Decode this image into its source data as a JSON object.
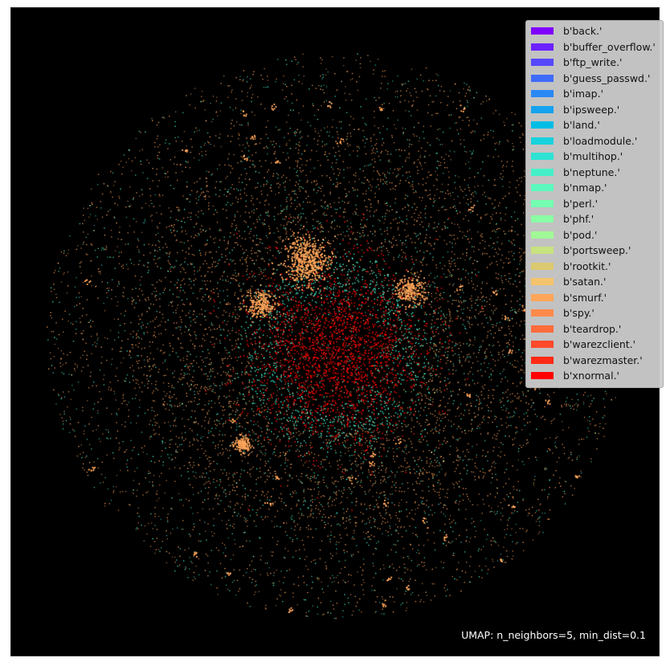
{
  "chart_data": {
    "type": "scatter",
    "title": "",
    "xlabel": "",
    "ylabel": "",
    "background": "#000000",
    "legend_position": "top-right",
    "annotation": "UMAP: n_neighbors=5, min_dist=0.1",
    "series": [
      {
        "name": "b'back.'",
        "color": "#7f00ff"
      },
      {
        "name": "b'buffer_overflow.'",
        "color": "#6c22fe"
      },
      {
        "name": "b'ftp_write.'",
        "color": "#5548fc"
      },
      {
        "name": "b'guess_passwd.'",
        "color": "#3f6bf9"
      },
      {
        "name": "b'imap.'",
        "color": "#2a89f4"
      },
      {
        "name": "b'ipsweep.'",
        "color": "#15a2ee"
      },
      {
        "name": "b'land.'",
        "color": "#00bde6"
      },
      {
        "name": "b'loadmodule.'",
        "color": "#17d2dd"
      },
      {
        "name": "b'multihop.'",
        "color": "#2ee2d4"
      },
      {
        "name": "b'neptune.'",
        "color": "#45f0c9"
      },
      {
        "name": "b'nmap.'",
        "color": "#5cf8be"
      },
      {
        "name": "b'perl.'",
        "color": "#73feb1"
      },
      {
        "name": "b'phf.'",
        "color": "#8afea4"
      },
      {
        "name": "b'pod.'",
        "color": "#a1f896"
      },
      {
        "name": "b'portsweep.'",
        "color": "#c8e27f"
      },
      {
        "name": "b'rootkit.'",
        "color": "#dbc970"
      },
      {
        "name": "b'satan.'",
        "color": "#f5c36b"
      },
      {
        "name": "b'smurf.'",
        "color": "#ffa55a"
      },
      {
        "name": "b'spy.'",
        "color": "#ff8a4c"
      },
      {
        "name": "b'teardrop.'",
        "color": "#ff6b3b"
      },
      {
        "name": "b'warezclient.'",
        "color": "#ff4a2a"
      },
      {
        "name": "b'warezmaster.'",
        "color": "#ff2a16"
      },
      {
        "name": "b'xnormal.'",
        "color": "#ff0000"
      }
    ]
  }
}
